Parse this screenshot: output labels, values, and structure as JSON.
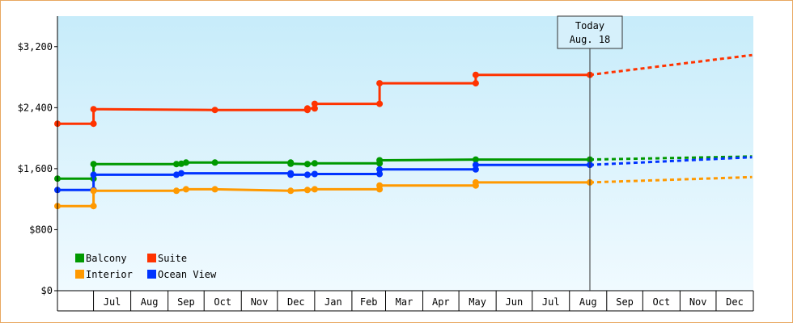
{
  "chart_data": {
    "type": "line",
    "title": "",
    "xlabel": "",
    "ylabel": "",
    "ylim": [
      0,
      3600
    ],
    "y_ticks": [
      0,
      800,
      1600,
      2400,
      3200
    ],
    "y_tick_labels": [
      "$0",
      "$800",
      "$1,600",
      "$2,400",
      "$3,200"
    ],
    "x_range": [
      "2018-06-01",
      "2019-12-31"
    ],
    "x_months": [
      {
        "label": "Jul",
        "start": "2018-07-01"
      },
      {
        "label": "Aug",
        "start": "2018-08-01"
      },
      {
        "label": "Sep",
        "start": "2018-09-01"
      },
      {
        "label": "Oct",
        "start": "2018-10-01"
      },
      {
        "label": "Nov",
        "start": "2018-11-01"
      },
      {
        "label": "Dec",
        "start": "2018-12-01"
      },
      {
        "label": "Jan",
        "start": "2019-01-01"
      },
      {
        "label": "Feb",
        "start": "2019-02-01"
      },
      {
        "label": "Mar",
        "start": "2019-03-01"
      },
      {
        "label": "Apr",
        "start": "2019-04-01"
      },
      {
        "label": "May",
        "start": "2019-05-01"
      },
      {
        "label": "Jun",
        "start": "2019-06-01"
      },
      {
        "label": "Jul",
        "start": "2019-07-01"
      },
      {
        "label": "Aug",
        "start": "2019-08-01"
      },
      {
        "label": "Sep",
        "start": "2019-09-01"
      },
      {
        "label": "Oct",
        "start": "2019-10-01"
      },
      {
        "label": "Nov",
        "start": "2019-11-01"
      },
      {
        "label": "Dec",
        "start": "2019-12-01"
      }
    ],
    "today": {
      "line1": "Today",
      "line2": "Aug. 18",
      "date": "2019-08-18"
    },
    "grid": false,
    "legend_position": "bottom-left",
    "series": [
      {
        "name": "Suite",
        "color": "#ff3300",
        "points": [
          [
            "2018-06-01",
            2190
          ],
          [
            "2018-07-01",
            2190
          ],
          [
            "2018-07-01",
            2380
          ],
          [
            "2018-10-10",
            2370
          ],
          [
            "2018-12-26",
            2370
          ],
          [
            "2018-12-26",
            2390
          ],
          [
            "2019-01-01",
            2390
          ],
          [
            "2019-01-01",
            2450
          ],
          [
            "2019-02-24",
            2450
          ],
          [
            "2019-02-24",
            2720
          ],
          [
            "2019-05-15",
            2720
          ],
          [
            "2019-05-15",
            2830
          ],
          [
            "2019-08-18",
            2830
          ]
        ],
        "forecast": [
          [
            "2019-08-18",
            2830
          ],
          [
            "2019-12-31",
            3090
          ]
        ]
      },
      {
        "name": "Balcony",
        "color": "#009900",
        "points": [
          [
            "2018-06-01",
            1470
          ],
          [
            "2018-07-01",
            1470
          ],
          [
            "2018-07-01",
            1660
          ],
          [
            "2018-09-08",
            1660
          ],
          [
            "2018-09-12",
            1665
          ],
          [
            "2018-09-16",
            1680
          ],
          [
            "2018-10-10",
            1680
          ],
          [
            "2018-12-12",
            1680
          ],
          [
            "2018-12-12",
            1665
          ],
          [
            "2018-12-26",
            1660
          ],
          [
            "2019-01-01",
            1670
          ],
          [
            "2019-02-24",
            1670
          ],
          [
            "2019-02-24",
            1710
          ],
          [
            "2019-05-15",
            1720
          ],
          [
            "2019-08-18",
            1720
          ]
        ],
        "forecast": [
          [
            "2019-08-18",
            1720
          ],
          [
            "2019-12-31",
            1760
          ]
        ]
      },
      {
        "name": "Ocean View",
        "color": "#0033ff",
        "points": [
          [
            "2018-06-01",
            1320
          ],
          [
            "2018-07-01",
            1320
          ],
          [
            "2018-07-01",
            1520
          ],
          [
            "2018-09-08",
            1520
          ],
          [
            "2018-09-12",
            1540
          ],
          [
            "2018-12-12",
            1540
          ],
          [
            "2018-12-12",
            1520
          ],
          [
            "2018-12-26",
            1520
          ],
          [
            "2019-01-01",
            1530
          ],
          [
            "2019-02-24",
            1530
          ],
          [
            "2019-02-24",
            1590
          ],
          [
            "2019-05-15",
            1590
          ],
          [
            "2019-05-15",
            1650
          ],
          [
            "2019-08-18",
            1650
          ]
        ],
        "forecast": [
          [
            "2019-08-18",
            1650
          ],
          [
            "2019-12-31",
            1750
          ]
        ]
      },
      {
        "name": "Interior",
        "color": "#ff9900",
        "points": [
          [
            "2018-06-01",
            1110
          ],
          [
            "2018-07-01",
            1110
          ],
          [
            "2018-07-01",
            1310
          ],
          [
            "2018-09-08",
            1310
          ],
          [
            "2018-09-16",
            1330
          ],
          [
            "2018-10-10",
            1330
          ],
          [
            "2018-12-12",
            1310
          ],
          [
            "2018-12-26",
            1320
          ],
          [
            "2019-01-01",
            1330
          ],
          [
            "2019-02-24",
            1330
          ],
          [
            "2019-02-24",
            1380
          ],
          [
            "2019-05-15",
            1380
          ],
          [
            "2019-05-15",
            1420
          ],
          [
            "2019-08-18",
            1420
          ]
        ],
        "forecast": [
          [
            "2019-08-18",
            1420
          ],
          [
            "2019-12-31",
            1490
          ]
        ]
      }
    ],
    "legend": [
      {
        "name": "Balcony",
        "color": "#009900"
      },
      {
        "name": "Suite",
        "color": "#ff3300"
      },
      {
        "name": "Interior",
        "color": "#ff9900"
      },
      {
        "name": "Ocean View",
        "color": "#0033ff"
      }
    ]
  }
}
